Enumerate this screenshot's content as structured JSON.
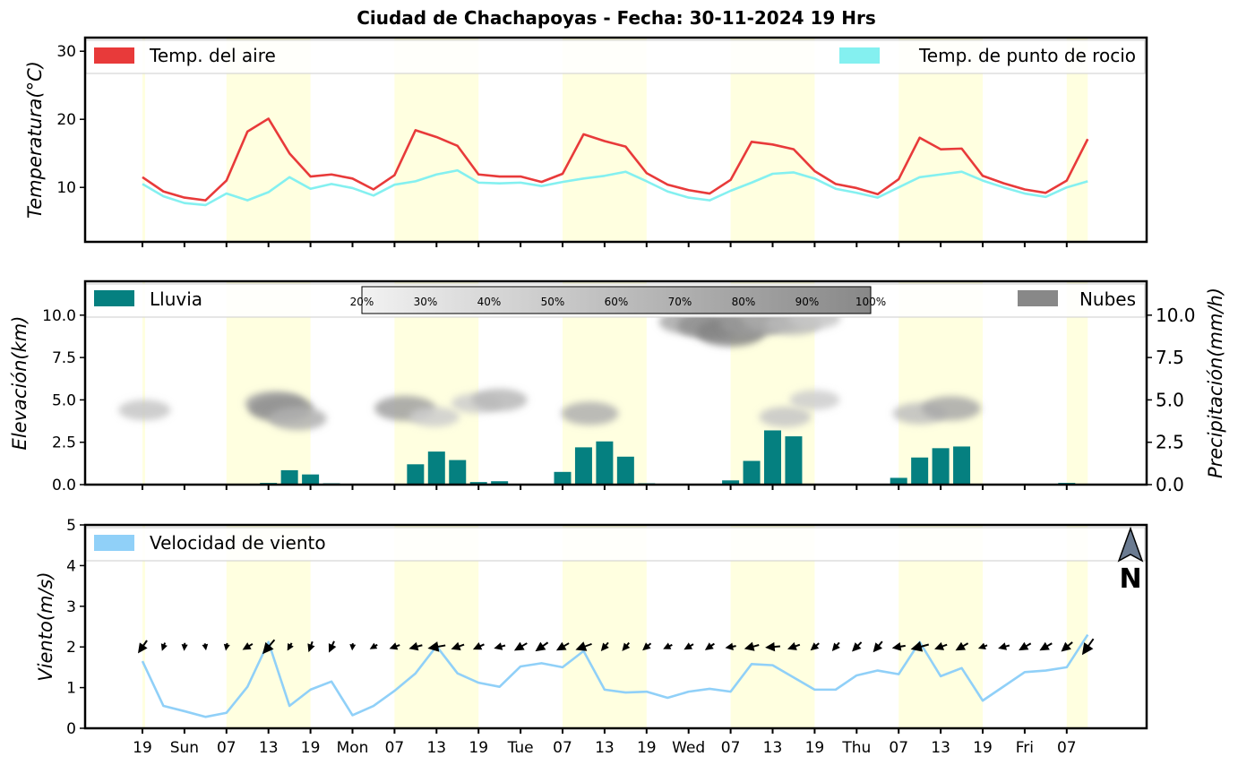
{
  "title": "Ciudad de Chachapoyas   -   Fecha: 30-11-2024 19 Hrs",
  "colors": {
    "temp_air": "#e83a3a",
    "dew_point": "#84f0f0",
    "rain": "#058080",
    "clouds": "#888888",
    "wind": "#90d0f8",
    "day_band": "#ffffe0"
  },
  "x_tick_labels": [
    "19",
    "Sun",
    "07",
    "13",
    "19",
    "Mon",
    "07",
    "13",
    "19",
    "Tue",
    "07",
    "13",
    "19",
    "Wed",
    "07",
    "13",
    "19",
    "Thu",
    "07",
    "13",
    "19",
    "Fri",
    "07"
  ],
  "chart_data": [
    {
      "type": "line",
      "panel": "temperature",
      "ylabel": "Temperatura(°C)",
      "ylim": [
        2,
        32
      ],
      "yticks": [
        "10",
        "20",
        "30"
      ],
      "legend": [
        "Temp. del aire",
        "Temp. de punto de rocio"
      ],
      "series": [
        {
          "name": "Temp. del aire",
          "values": [
            11.5,
            9.4,
            8.5,
            8.1,
            11,
            18.2,
            20.1,
            15,
            11.6,
            11.9,
            11.3,
            9.7,
            11.8,
            18.4,
            17.4,
            16.1,
            11.9,
            11.6,
            11.6,
            10.8,
            12,
            17.8,
            16.8,
            16,
            12.1,
            10.4,
            9.6,
            9.1,
            11.1,
            16.7,
            16.3,
            15.6,
            12.4,
            10.5,
            9.9,
            9,
            11.2,
            17.3,
            15.6,
            15.7,
            11.7,
            10.6,
            9.7,
            9.2,
            11,
            17.1
          ]
        },
        {
          "name": "Temp. de punto de rocio",
          "values": [
            10.5,
            8.7,
            7.7,
            7.4,
            9.1,
            8.1,
            9.3,
            11.5,
            9.8,
            10.5,
            9.9,
            8.8,
            10.4,
            10.9,
            11.9,
            12.5,
            10.7,
            10.6,
            10.7,
            10.2,
            10.8,
            11.3,
            11.7,
            12.3,
            10.9,
            9.4,
            8.5,
            8.1,
            9.5,
            10.7,
            12,
            12.2,
            11.3,
            9.8,
            9.2,
            8.5,
            10,
            11.5,
            11.9,
            12.3,
            11,
            10,
            9.1,
            8.6,
            10,
            10.9
          ]
        }
      ]
    },
    {
      "type": "bar",
      "panel": "precipitation_clouds",
      "ylabel": "Elevación(km)",
      "ylabel_right": "Precipitación(mm/h)",
      "ylim": [
        0,
        12
      ],
      "yticks": [
        "0.0",
        "2.5",
        "5.0",
        "7.5",
        "10.0"
      ],
      "legend": [
        "Lluvia",
        "Nubes"
      ],
      "colorbar_labels": [
        "20%",
        "30%",
        "40%",
        "50%",
        "60%",
        "70%",
        "80%",
        "90%",
        "100%"
      ],
      "series": [
        {
          "name": "Lluvia",
          "values": [
            0,
            0,
            0,
            0,
            0,
            0,
            0.1,
            0.85,
            0.6,
            0.08,
            0.05,
            0.05,
            0.05,
            1.2,
            1.95,
            1.45,
            0.15,
            0.2,
            0,
            0,
            0.75,
            2.2,
            2.55,
            1.65,
            0.08,
            0,
            0,
            0,
            0.25,
            1.4,
            3.2,
            2.85,
            0.05,
            0,
            0,
            0,
            0.4,
            1.6,
            2.15,
            2.25,
            0.03,
            0,
            0,
            0,
            0.1
          ]
        }
      ],
      "clouds": [
        {
          "x": 0.1,
          "elev": 4.4,
          "cover": 0.25
        },
        {
          "x": 6.3,
          "elev": 4.8,
          "cover": 0.45
        },
        {
          "x": 6.6,
          "elev": 4.5,
          "cover": 0.6
        },
        {
          "x": 7.4,
          "elev": 3.9,
          "cover": 0.4
        },
        {
          "x": 12.5,
          "elev": 4.5,
          "cover": 0.5
        },
        {
          "x": 13.9,
          "elev": 4.0,
          "cover": 0.2
        },
        {
          "x": 15.9,
          "elev": 4.8,
          "cover": 0.2
        },
        {
          "x": 17.0,
          "elev": 5.0,
          "cover": 0.35
        },
        {
          "x": 21.3,
          "elev": 4.2,
          "cover": 0.4
        },
        {
          "x": 26.0,
          "elev": 9.6,
          "cover": 0.45
        },
        {
          "x": 27.0,
          "elev": 9.4,
          "cover": 0.6
        },
        {
          "x": 28.0,
          "elev": 9.0,
          "cover": 0.7
        },
        {
          "x": 29.0,
          "elev": 9.5,
          "cover": 0.55
        },
        {
          "x": 30.0,
          "elev": 9.7,
          "cover": 0.45
        },
        {
          "x": 31.0,
          "elev": 9.5,
          "cover": 0.35
        },
        {
          "x": 32.0,
          "elev": 9.8,
          "cover": 0.25
        },
        {
          "x": 30.6,
          "elev": 4.0,
          "cover": 0.25
        },
        {
          "x": 32.0,
          "elev": 5.0,
          "cover": 0.2
        },
        {
          "x": 37.0,
          "elev": 4.2,
          "cover": 0.3
        },
        {
          "x": 38.5,
          "elev": 4.5,
          "cover": 0.45
        }
      ]
    },
    {
      "type": "line",
      "panel": "wind",
      "ylabel": "Viento(m/s)",
      "ylim": [
        0,
        5
      ],
      "yticks": [
        "0",
        "1",
        "2",
        "3",
        "4",
        "5"
      ],
      "legend": [
        "Velocidad de viento"
      ],
      "compass_label": "N",
      "series": [
        {
          "name": "Velocidad de viento",
          "values": [
            1.65,
            0.55,
            0.42,
            0.28,
            0.38,
            1.02,
            2.12,
            0.55,
            0.95,
            1.15,
            0.32,
            0.55,
            0.92,
            1.35,
            2.02,
            1.35,
            1.12,
            1.02,
            1.52,
            1.6,
            1.5,
            1.9,
            0.95,
            0.88,
            0.9,
            0.75,
            0.9,
            0.97,
            0.9,
            1.58,
            1.55,
            1.25,
            0.95,
            0.95,
            1.3,
            1.42,
            1.33,
            2.12,
            1.28,
            1.48,
            0.68,
            1.03,
            1.38,
            1.42,
            1.5,
            2.3
          ]
        }
      ],
      "wind_direction_deg": [
        125,
        110,
        95,
        80,
        100,
        150,
        130,
        120,
        110,
        115,
        95,
        150,
        160,
        165,
        170,
        160,
        155,
        165,
        150,
        145,
        150,
        160,
        130,
        130,
        140,
        155,
        150,
        145,
        170,
        165,
        175,
        160,
        140,
        130,
        135,
        130,
        170,
        165,
        160,
        150,
        160,
        165,
        150,
        150,
        140,
        125
      ]
    }
  ]
}
